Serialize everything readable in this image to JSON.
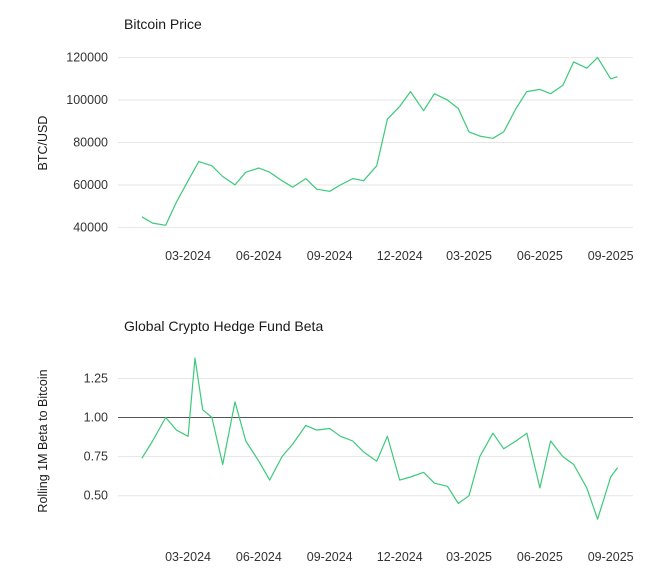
{
  "colors": {
    "series": "#3cc97a",
    "text": "#1a1a1a",
    "grid": "#e6e6e6",
    "reference": "#555555"
  },
  "chart_data": [
    {
      "type": "line",
      "title": "Bitcoin Price",
      "xlabel": "",
      "ylabel": "BTC/USD",
      "x_ticks": [
        "03-2024",
        "06-2024",
        "09-2024",
        "12-2024",
        "03-2025",
        "06-2025",
        "09-2025"
      ],
      "y_ticks": [
        40000,
        60000,
        80000,
        100000,
        120000
      ],
      "ylim": [
        35000,
        125000
      ],
      "grid": true,
      "series": [
        {
          "x": [
            "2024-01-01",
            "2024-01-15",
            "2024-02-01",
            "2024-02-15",
            "2024-03-01",
            "2024-03-15",
            "2024-04-01",
            "2024-04-15",
            "2024-05-01",
            "2024-05-15",
            "2024-06-01",
            "2024-06-15",
            "2024-07-01",
            "2024-07-15",
            "2024-08-01",
            "2024-08-15",
            "2024-09-01",
            "2024-09-15",
            "2024-10-01",
            "2024-10-15",
            "2024-11-01",
            "2024-11-15",
            "2024-12-01",
            "2024-12-15",
            "2025-01-01",
            "2025-01-15",
            "2025-02-01",
            "2025-02-15",
            "2025-03-01",
            "2025-03-15",
            "2025-04-01",
            "2025-04-15",
            "2025-05-01",
            "2025-05-15",
            "2025-06-01",
            "2025-06-15",
            "2025-07-01",
            "2025-07-15",
            "2025-08-01",
            "2025-08-15",
            "2025-09-01",
            "2025-09-10"
          ],
          "values": [
            45000,
            42000,
            41000,
            52000,
            62000,
            71000,
            69000,
            64000,
            60000,
            66000,
            68000,
            66000,
            62000,
            59000,
            63000,
            58000,
            57000,
            60000,
            63000,
            62000,
            69000,
            91000,
            97000,
            104000,
            95000,
            103000,
            100000,
            96000,
            85000,
            83000,
            82000,
            85000,
            96000,
            104000,
            105000,
            103000,
            107000,
            118000,
            115000,
            120000,
            110000,
            111000
          ]
        }
      ]
    },
    {
      "type": "line",
      "title": "Global Crypto Hedge Fund Beta",
      "xlabel": "",
      "ylabel": "Rolling 1M Beta to Bitcoin",
      "x_ticks": [
        "03-2024",
        "06-2024",
        "09-2024",
        "12-2024",
        "03-2025",
        "06-2025",
        "09-2025"
      ],
      "y_ticks": [
        "0.50",
        "0.75",
        "1.00",
        "1.25"
      ],
      "ylim": [
        0.3,
        1.4
      ],
      "reference_line": 1.0,
      "grid": true,
      "series": [
        {
          "x": [
            "2024-01-01",
            "2024-01-15",
            "2024-02-01",
            "2024-02-15",
            "2024-03-01",
            "2024-03-10",
            "2024-03-20",
            "2024-04-01",
            "2024-04-15",
            "2024-05-01",
            "2024-05-15",
            "2024-06-01",
            "2024-06-15",
            "2024-07-01",
            "2024-07-15",
            "2024-08-01",
            "2024-08-15",
            "2024-09-01",
            "2024-09-15",
            "2024-10-01",
            "2024-10-15",
            "2024-11-01",
            "2024-11-15",
            "2024-12-01",
            "2024-12-15",
            "2025-01-01",
            "2025-01-15",
            "2025-02-01",
            "2025-02-15",
            "2025-03-01",
            "2025-03-15",
            "2025-04-01",
            "2025-04-15",
            "2025-05-01",
            "2025-05-15",
            "2025-06-01",
            "2025-06-15",
            "2025-07-01",
            "2025-07-15",
            "2025-08-01",
            "2025-08-15",
            "2025-09-01",
            "2025-09-10"
          ],
          "values": [
            0.74,
            0.85,
            1.0,
            0.92,
            0.88,
            1.38,
            1.05,
            1.0,
            0.7,
            1.1,
            0.85,
            0.72,
            0.6,
            0.75,
            0.83,
            0.95,
            0.92,
            0.93,
            0.88,
            0.85,
            0.78,
            0.72,
            0.88,
            0.6,
            0.62,
            0.65,
            0.58,
            0.56,
            0.45,
            0.5,
            0.75,
            0.9,
            0.8,
            0.85,
            0.9,
            0.55,
            0.85,
            0.75,
            0.7,
            0.55,
            0.35,
            0.62,
            0.68
          ]
        }
      ]
    }
  ]
}
